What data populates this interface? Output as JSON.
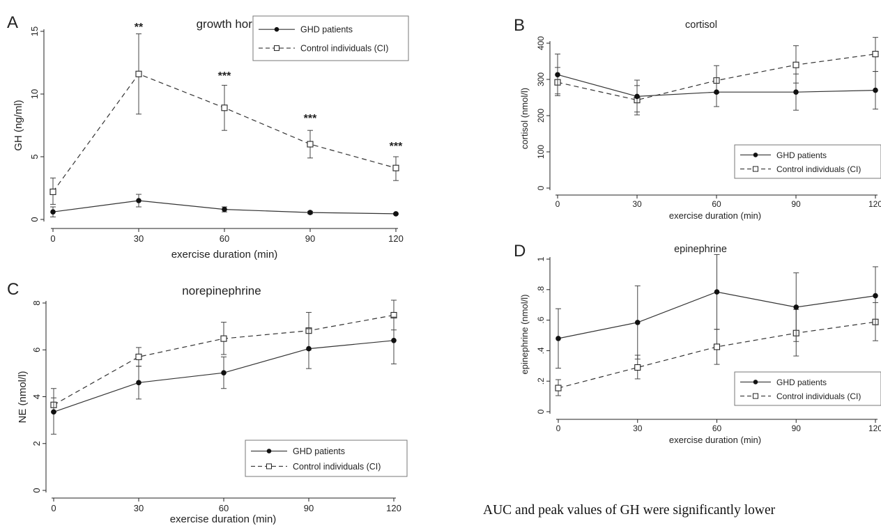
{
  "caption": "AUC and peak values of GH were significantly lower",
  "chart_data": [
    {
      "id": "A",
      "panel_label": "A",
      "type": "line",
      "title": "growth hormone",
      "xlabel": "exercise duration (min)",
      "ylabel": "GH (ng/ml)",
      "x": [
        0,
        30,
        60,
        90,
        120
      ],
      "xticks": [
        "0",
        "30",
        "60",
        "90",
        "120"
      ],
      "xlim": [
        0,
        120
      ],
      "ylim": [
        0,
        15
      ],
      "yticks": [
        0,
        5,
        10,
        15
      ],
      "ytick_labels": [
        "0",
        "5",
        "10",
        "15"
      ],
      "legend_position": "top-right",
      "series": [
        {
          "name": "GHD patients",
          "style": "solid",
          "marker": "filled-circle",
          "values": [
            0.6,
            1.5,
            0.8,
            0.55,
            0.45
          ],
          "err_low": [
            0.2,
            1.0,
            0.6,
            0.45,
            0.4
          ],
          "err_high": [
            1.0,
            2.0,
            1.0,
            0.65,
            0.5
          ]
        },
        {
          "name": "Control individuals (CI)",
          "style": "dashed",
          "marker": "open-square",
          "values": [
            2.2,
            11.6,
            8.9,
            6.0,
            4.1
          ],
          "err_low": [
            1.2,
            8.4,
            7.1,
            4.9,
            3.1
          ],
          "err_high": [
            3.3,
            14.8,
            10.7,
            7.1,
            5.0
          ]
        }
      ],
      "annotations": [
        {
          "x": 30,
          "y": 15.4,
          "text": "**"
        },
        {
          "x": 60,
          "y": 11.5,
          "text": "***"
        },
        {
          "x": 90,
          "y": 8.1,
          "text": "***"
        },
        {
          "x": 120,
          "y": 5.9,
          "text": "***"
        }
      ]
    },
    {
      "id": "B",
      "panel_label": "B",
      "type": "line",
      "title": "cortisol",
      "xlabel": "exercise duration (min)",
      "ylabel": "cortisol (nmol/l)",
      "x": [
        0,
        30,
        60,
        90,
        120
      ],
      "xticks": [
        "0",
        "30",
        "60",
        "90",
        "120"
      ],
      "xlim": [
        0,
        120
      ],
      "ylim": [
        0,
        400
      ],
      "yticks": [
        0,
        100,
        200,
        300,
        400
      ],
      "ytick_labels": [
        "0",
        "100",
        "200",
        "300",
        "400"
      ],
      "legend_position": "bottom-right",
      "series": [
        {
          "name": "GHD patients",
          "style": "solid",
          "marker": "filled-circle",
          "values": [
            313,
            253,
            265,
            265,
            270
          ],
          "err_low": [
            260,
            210,
            225,
            215,
            218
          ],
          "err_high": [
            370,
            298,
            305,
            315,
            322
          ]
        },
        {
          "name": "Control individuals (CI)",
          "style": "dashed",
          "marker": "open-square",
          "values": [
            292,
            243,
            297,
            340,
            370
          ],
          "err_low": [
            255,
            202,
            262,
            290,
            322
          ],
          "err_high": [
            333,
            283,
            338,
            393,
            416
          ]
        }
      ],
      "annotations": []
    },
    {
      "id": "C",
      "panel_label": "C",
      "type": "line",
      "title": "norepinephrine",
      "xlabel": "exercise duration (min)",
      "ylabel": "NE (nmol/l)",
      "x": [
        0,
        30,
        60,
        90,
        120
      ],
      "xticks": [
        "0",
        "30",
        "60",
        "90",
        "120"
      ],
      "xlim": [
        0,
        120
      ],
      "ylim": [
        0,
        8
      ],
      "yticks": [
        0,
        2,
        4,
        6,
        8
      ],
      "ytick_labels": [
        "0",
        "2",
        "4",
        "6",
        "8"
      ],
      "legend_position": "bottom-right",
      "series": [
        {
          "name": "GHD patients",
          "style": "solid",
          "marker": "filled-circle",
          "values": [
            3.35,
            4.6,
            5.02,
            6.05,
            6.4
          ],
          "err_low": [
            2.4,
            3.9,
            4.35,
            5.2,
            5.4
          ],
          "err_high": [
            4.35,
            5.3,
            5.7,
            6.9,
            7.4
          ]
        },
        {
          "name": "Control individuals (CI)",
          "style": "dashed",
          "marker": "open-square",
          "values": [
            3.65,
            5.7,
            6.48,
            6.82,
            7.48
          ],
          "err_low": [
            3.35,
            5.3,
            5.8,
            6.0,
            6.85
          ],
          "err_high": [
            3.95,
            6.1,
            7.18,
            7.6,
            8.12
          ]
        }
      ],
      "annotations": []
    },
    {
      "id": "D",
      "panel_label": "D",
      "type": "line",
      "title": "epinephrine",
      "xlabel": "exercise duration (min)",
      "ylabel": "epinephrine (nmol/l)",
      "x": [
        0,
        30,
        60,
        90,
        120
      ],
      "xticks": [
        "0",
        "30",
        "60",
        "90",
        "120"
      ],
      "xlim": [
        0,
        120
      ],
      "ylim": [
        0,
        1.0
      ],
      "yticks": [
        0,
        0.2,
        0.4,
        0.6,
        0.8,
        1.0
      ],
      "ytick_labels": [
        "0",
        ".2",
        ".4",
        ".6",
        ".8",
        "1"
      ],
      "legend_position": "bottom-right",
      "series": [
        {
          "name": "GHD patients",
          "style": "solid",
          "marker": "filled-circle",
          "values": [
            0.48,
            0.585,
            0.785,
            0.685,
            0.76
          ],
          "err_low": [
            0.285,
            0.345,
            0.54,
            0.46,
            0.57
          ],
          "err_high": [
            0.675,
            0.825,
            1.03,
            0.91,
            0.95
          ]
        },
        {
          "name": "Control individuals (CI)",
          "style": "dashed",
          "marker": "open-square",
          "values": [
            0.155,
            0.29,
            0.425,
            0.515,
            0.588
          ],
          "err_low": [
            0.105,
            0.215,
            0.31,
            0.365,
            0.465
          ],
          "err_high": [
            0.21,
            0.37,
            0.54,
            0.67,
            0.715
          ]
        }
      ],
      "annotations": []
    }
  ]
}
